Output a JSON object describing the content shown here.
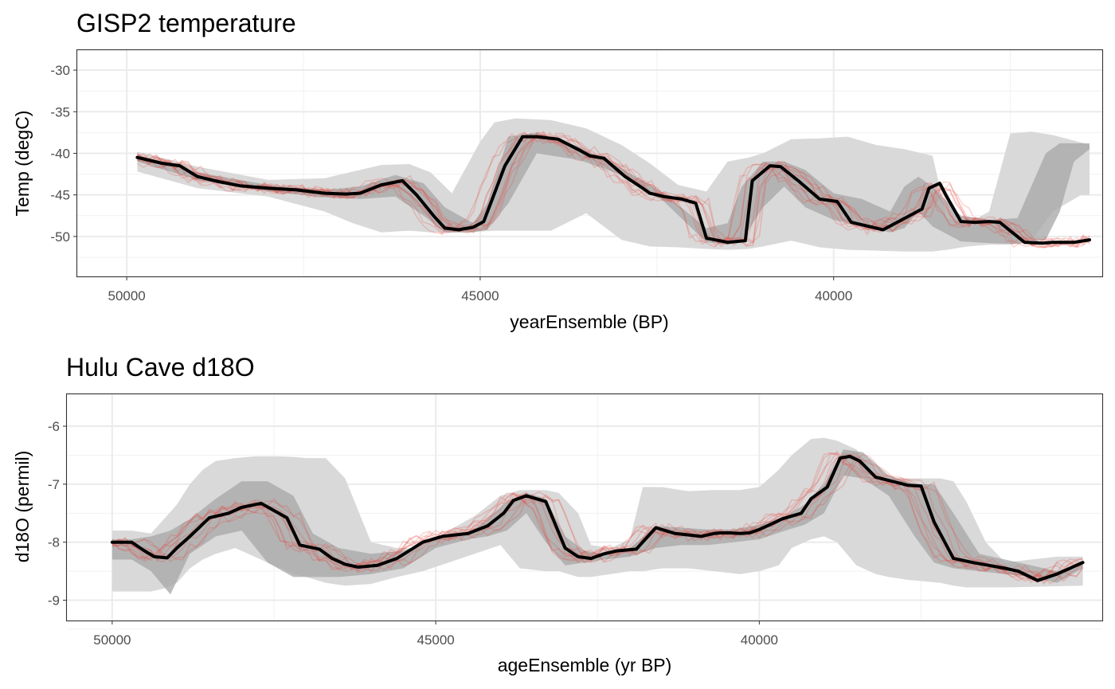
{
  "chart_data": [
    {
      "type": "line",
      "title": "GISP2 temperature",
      "xlabel": "yearEnsemble (BP)",
      "ylabel": "Temp (degC)",
      "x_reversed": true,
      "xlim": [
        50700,
        36200
      ],
      "ylim": [
        -54.8,
        -27.6
      ],
      "x_ticks": [
        50000,
        45000,
        40000
      ],
      "x_tick_labels": [
        "50000",
        "45000",
        "40000"
      ],
      "y_ticks": [
        -30,
        -35,
        -40,
        -45,
        -50
      ],
      "y_tick_labels": [
        "-30",
        "-35",
        "-40",
        "-45",
        "-50"
      ],
      "grid": true,
      "colors": {
        "median": "#000000",
        "band_outer": "#d9d9d9",
        "band_inner": "#a6a6a6",
        "ensemble": "#e8443a"
      },
      "series": [
        {
          "role": "median",
          "x": [
            49850,
            49500,
            49250,
            49000,
            48700,
            48400,
            48000,
            47600,
            47200,
            46900,
            46700,
            46400,
            46100,
            45900,
            45650,
            45500,
            45300,
            45250,
            45100,
            44950,
            44650,
            44400,
            44200,
            43900,
            43600,
            43450,
            43250,
            42950,
            42700,
            42600,
            42400,
            42150,
            41950,
            41800,
            41500,
            41250,
            41150,
            40900,
            40750,
            40500,
            40200,
            39950,
            39750,
            39300,
            38750,
            38650,
            38500,
            38400,
            38200,
            38000,
            37800,
            37650,
            37300,
            37050,
            36900,
            36600,
            36380
          ],
          "y": [
            -40.5,
            -41.2,
            -41.5,
            -42.8,
            -43.4,
            -43.9,
            -44.2,
            -44.4,
            -44.8,
            -44.9,
            -44.8,
            -43.8,
            -43.3,
            -45.0,
            -47.6,
            -49.0,
            -49.2,
            -49.1,
            -48.9,
            -48.2,
            -41.5,
            -38.0,
            -38.0,
            -38.3,
            -39.6,
            -40.3,
            -40.6,
            -42.8,
            -44.2,
            -44.8,
            -45.2,
            -45.5,
            -46.0,
            -50.2,
            -50.7,
            -50.5,
            -43.3,
            -41.5,
            -41.6,
            -43.3,
            -45.5,
            -45.8,
            -48.3,
            -49.2,
            -46.7,
            -44.2,
            -43.6,
            -45.2,
            -48.2,
            -48.3,
            -48.2,
            -48.3,
            -50.7,
            -50.8,
            -50.7,
            -50.7,
            -50.4
          ]
        },
        {
          "role": "band_inner_upper",
          "x": [
            49850,
            49000,
            48000,
            47200,
            46700,
            46200,
            45800,
            45500,
            45100,
            44900,
            44600,
            44200,
            43600,
            43000,
            42400,
            41800,
            41500,
            41300,
            41000,
            40700,
            40400,
            40000,
            39600,
            39200,
            39000,
            38800,
            38600,
            38200,
            37800,
            37400,
            37000,
            36800,
            36600,
            36380
          ],
          "y": [
            -40.2,
            -42.3,
            -43.8,
            -44.4,
            -44.0,
            -42.6,
            -43.6,
            -46.5,
            -48.4,
            -46.0,
            -38.0,
            -37.5,
            -39.2,
            -41.8,
            -44.8,
            -49.0,
            -48.4,
            -44.0,
            -41.0,
            -41.0,
            -42.0,
            -44.8,
            -45.5,
            -47.0,
            -44.0,
            -42.8,
            -44.0,
            -47.5,
            -48.0,
            -47.8,
            -40.0,
            -38.8,
            -38.8,
            -38.8
          ]
        },
        {
          "role": "band_inner_lower",
          "x": [
            49850,
            49000,
            48000,
            47200,
            46700,
            46200,
            45800,
            45500,
            45100,
            44900,
            44600,
            44200,
            43600,
            43000,
            42400,
            41800,
            41500,
            41300,
            41000,
            40700,
            40400,
            40000,
            39600,
            39200,
            39000,
            38800,
            38600,
            38200,
            37800,
            37400,
            37000,
            36800,
            36600,
            36380
          ],
          "y": [
            -41.0,
            -43.2,
            -44.6,
            -45.3,
            -45.5,
            -45.2,
            -47.5,
            -49.5,
            -49.5,
            -49.2,
            -46.0,
            -40.0,
            -40.8,
            -42.6,
            -45.8,
            -50.7,
            -51.0,
            -50.5,
            -46.5,
            -44.0,
            -46.5,
            -48.0,
            -48.8,
            -49.5,
            -49.0,
            -47.0,
            -48.8,
            -50.6,
            -50.8,
            -50.9,
            -50.4,
            -47.0,
            -41.0,
            -39.5
          ]
        },
        {
          "role": "band_outer_upper",
          "x": [
            49850,
            49000,
            48000,
            47200,
            46800,
            46400,
            46000,
            45700,
            45400,
            45000,
            44800,
            44500,
            44000,
            43500,
            43000,
            42600,
            42200,
            41800,
            41500,
            41200,
            41000,
            40600,
            40200,
            39800,
            39400,
            39000,
            38600,
            38400,
            38100,
            37800,
            37500,
            37200,
            36900,
            36500,
            36380
          ],
          "y": [
            -39.8,
            -41.6,
            -43.2,
            -43.0,
            -42.2,
            -41.4,
            -41.3,
            -42.3,
            -44.8,
            -38.6,
            -36.3,
            -35.8,
            -36.0,
            -37.0,
            -39.0,
            -41.2,
            -43.8,
            -44.6,
            -41.0,
            -40.5,
            -40.0,
            -38.3,
            -38.2,
            -38.0,
            -39.0,
            -39.5,
            -40.3,
            -47.8,
            -48.4,
            -47.0,
            -37.6,
            -37.4,
            -37.8,
            -38.7,
            -39.0
          ]
        },
        {
          "role": "band_outer_lower",
          "x": [
            49850,
            49000,
            48000,
            47200,
            46800,
            46400,
            46000,
            45700,
            45400,
            45000,
            44800,
            44500,
            44000,
            43500,
            43000,
            42600,
            42200,
            41800,
            41500,
            41200,
            41000,
            40600,
            40200,
            39800,
            39400,
            39000,
            38600,
            38400,
            38100,
            37800,
            37500,
            37200,
            36900,
            36500,
            36380
          ],
          "y": [
            -42.2,
            -44.2,
            -45.2,
            -47.0,
            -48.4,
            -49.5,
            -49.3,
            -49.5,
            -49.5,
            -49.4,
            -49.3,
            -49.3,
            -49.3,
            -47.2,
            -50.4,
            -51.2,
            -51.3,
            -51.5,
            -51.6,
            -51.5,
            -51.2,
            -50.5,
            -51.3,
            -51.6,
            -51.7,
            -51.8,
            -51.8,
            -51.6,
            -51.2,
            -51.0,
            -51.0,
            -50.5,
            -47.0,
            -45.0,
            -45.0
          ]
        }
      ]
    },
    {
      "type": "line",
      "title": "Hulu Cave d18O",
      "xlabel": "ageEnsemble (yr BP)",
      "ylabel": "d18O (permil)",
      "x_reversed": true,
      "xlim": [
        50700,
        34700
      ],
      "ylim": [
        -9.35,
        -5.45
      ],
      "x_ticks": [
        50000,
        45000,
        40000
      ],
      "x_tick_labels": [
        "50000",
        "45000",
        "40000"
      ],
      "y_ticks": [
        -6,
        -7,
        -8,
        -9
      ],
      "y_tick_labels": [
        "-6",
        "-7",
        "-8",
        "-9"
      ],
      "grid": true,
      "colors": {
        "median": "#000000",
        "band_outer": "#d9d9d9",
        "band_inner": "#a6a6a6",
        "ensemble": "#e8443a"
      },
      "series": [
        {
          "role": "median",
          "x": [
            50000,
            49700,
            49500,
            49350,
            49150,
            49000,
            48800,
            48500,
            48200,
            48000,
            47700,
            47300,
            47100,
            46800,
            46600,
            46400,
            46200,
            45900,
            45600,
            45200,
            44900,
            44500,
            44200,
            43950,
            43800,
            43600,
            43300,
            43000,
            42800,
            42600,
            42400,
            42200,
            41900,
            41600,
            41300,
            41050,
            40900,
            40700,
            40600,
            40450,
            40300,
            40150,
            40000,
            39800,
            39650,
            39350,
            39200,
            38950,
            38750,
            38600,
            38450,
            38200,
            37950,
            37700,
            37500,
            37300,
            37000,
            36700,
            36450,
            36200,
            36000,
            35700,
            35400,
            35000
          ],
          "y": [
            -8.0,
            -8.0,
            -8.15,
            -8.25,
            -8.27,
            -8.1,
            -7.9,
            -7.58,
            -7.5,
            -7.4,
            -7.33,
            -7.58,
            -8.05,
            -8.12,
            -8.28,
            -8.38,
            -8.43,
            -8.4,
            -8.28,
            -8.0,
            -7.9,
            -7.85,
            -7.72,
            -7.5,
            -7.28,
            -7.2,
            -7.3,
            -8.1,
            -8.25,
            -8.28,
            -8.2,
            -8.15,
            -8.12,
            -7.75,
            -7.85,
            -7.88,
            -7.9,
            -7.85,
            -7.84,
            -7.84,
            -7.85,
            -7.84,
            -7.78,
            -7.68,
            -7.6,
            -7.5,
            -7.25,
            -7.05,
            -6.55,
            -6.52,
            -6.6,
            -6.88,
            -6.95,
            -7.02,
            -7.03,
            -7.65,
            -8.28,
            -8.35,
            -8.4,
            -8.45,
            -8.5,
            -8.66,
            -8.55,
            -8.35
          ]
        },
        {
          "role": "band_inner_upper",
          "x": [
            50000,
            49700,
            49400,
            49100,
            48800,
            48400,
            48000,
            47600,
            47200,
            46900,
            46500,
            46000,
            45500,
            45000,
            44500,
            44200,
            43900,
            43600,
            43300,
            43000,
            42700,
            42400,
            42000,
            41600,
            41200,
            40800,
            40400,
            40000,
            39600,
            39300,
            39000,
            38700,
            38400,
            38000,
            37600,
            37300,
            37000,
            36600,
            36200,
            35800,
            35400,
            35000
          ],
          "y": [
            -7.95,
            -7.95,
            -7.9,
            -7.8,
            -7.6,
            -7.25,
            -6.95,
            -6.95,
            -7.2,
            -7.85,
            -8.1,
            -8.2,
            -8.15,
            -7.95,
            -7.85,
            -7.6,
            -7.3,
            -7.15,
            -7.25,
            -7.9,
            -8.15,
            -8.2,
            -8.1,
            -7.72,
            -7.75,
            -7.78,
            -7.78,
            -7.7,
            -7.55,
            -7.35,
            -7.0,
            -6.4,
            -6.45,
            -6.85,
            -7.0,
            -7.0,
            -7.5,
            -8.2,
            -8.3,
            -8.4,
            -8.5,
            -8.35
          ]
        },
        {
          "role": "band_inner_lower",
          "x": [
            50000,
            49700,
            49400,
            49100,
            48800,
            48400,
            48000,
            47600,
            47200,
            46900,
            46500,
            46000,
            45500,
            45000,
            44500,
            44200,
            43900,
            43600,
            43300,
            43000,
            42700,
            42400,
            42000,
            41600,
            41200,
            40800,
            40400,
            40000,
            39600,
            39300,
            39000,
            38700,
            38400,
            38000,
            37600,
            37300,
            37000,
            36600,
            36200,
            35800,
            35400,
            35000
          ],
          "y": [
            -8.3,
            -8.3,
            -8.5,
            -8.9,
            -8.2,
            -7.9,
            -7.8,
            -8.35,
            -8.6,
            -8.6,
            -8.6,
            -8.55,
            -8.45,
            -8.1,
            -7.95,
            -7.9,
            -7.8,
            -7.5,
            -8.0,
            -8.4,
            -8.35,
            -8.3,
            -8.25,
            -8.1,
            -8.05,
            -8.05,
            -8.0,
            -7.95,
            -7.8,
            -7.7,
            -7.5,
            -6.85,
            -6.9,
            -7.2,
            -7.9,
            -8.35,
            -8.45,
            -8.5,
            -8.55,
            -8.6,
            -8.7,
            -8.45
          ]
        },
        {
          "role": "band_outer_upper",
          "x": [
            50000,
            49700,
            49400,
            49200,
            49000,
            48800,
            48600,
            48400,
            48100,
            47800,
            47400,
            47200,
            47000,
            46700,
            46400,
            46000,
            45600,
            45200,
            44800,
            44400,
            44000,
            43700,
            43300,
            43100,
            42800,
            42600,
            42300,
            42000,
            41800,
            41500,
            41100,
            40700,
            40300,
            40000,
            39700,
            39500,
            39200,
            39000,
            38800,
            38500,
            38200,
            38000,
            37700,
            37200,
            37000,
            36800,
            36500,
            36200,
            35800,
            35400,
            35000
          ],
          "y": [
            -7.8,
            -7.8,
            -7.85,
            -7.6,
            -7.35,
            -7.0,
            -6.75,
            -6.6,
            -6.55,
            -6.52,
            -6.52,
            -6.53,
            -6.55,
            -6.55,
            -6.9,
            -8.0,
            -8.1,
            -8.1,
            -7.8,
            -7.55,
            -7.2,
            -7.1,
            -7.1,
            -7.15,
            -7.5,
            -8.05,
            -8.1,
            -7.95,
            -7.05,
            -7.05,
            -7.12,
            -7.1,
            -7.1,
            -7.05,
            -6.75,
            -6.5,
            -6.22,
            -6.2,
            -6.25,
            -6.4,
            -6.85,
            -6.9,
            -6.9,
            -6.9,
            -6.95,
            -7.3,
            -8.0,
            -8.35,
            -8.3,
            -8.25,
            -8.25
          ]
        },
        {
          "role": "band_outer_lower",
          "x": [
            50000,
            49700,
            49400,
            49200,
            49000,
            48800,
            48600,
            48400,
            48100,
            47800,
            47400,
            47200,
            47000,
            46700,
            46400,
            46000,
            45600,
            45200,
            44800,
            44400,
            44000,
            43700,
            43300,
            43100,
            42800,
            42600,
            42300,
            42000,
            41800,
            41500,
            41100,
            40700,
            40300,
            40000,
            39700,
            39500,
            39200,
            39000,
            38800,
            38500,
            38200,
            38000,
            37700,
            37200,
            37000,
            36800,
            36500,
            36200,
            35800,
            35400,
            35000
          ],
          "y": [
            -8.85,
            -8.85,
            -8.85,
            -8.8,
            -8.7,
            -8.45,
            -8.3,
            -8.2,
            -8.1,
            -8.25,
            -8.45,
            -8.55,
            -8.6,
            -8.7,
            -8.75,
            -8.72,
            -8.6,
            -8.5,
            -8.35,
            -8.2,
            -8.05,
            -8.45,
            -8.5,
            -8.5,
            -8.6,
            -8.6,
            -8.55,
            -8.5,
            -8.5,
            -8.45,
            -8.45,
            -8.5,
            -8.55,
            -8.5,
            -8.4,
            -8.1,
            -7.95,
            -7.9,
            -8.0,
            -8.4,
            -8.55,
            -8.6,
            -8.65,
            -8.7,
            -8.75,
            -8.78,
            -8.78,
            -8.78,
            -8.77,
            -8.76,
            -8.75
          ]
        }
      ]
    }
  ]
}
